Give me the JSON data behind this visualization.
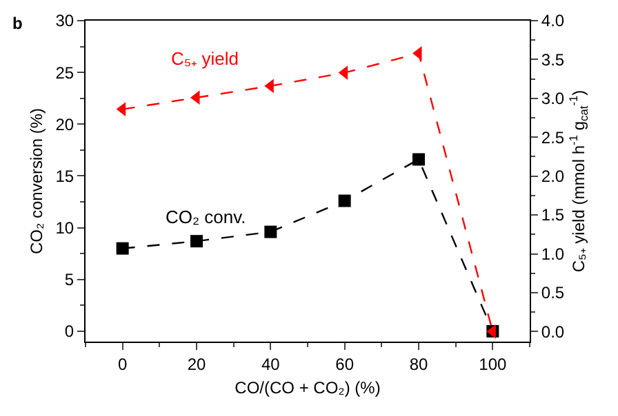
{
  "chart_data": {
    "type": "line",
    "annotations": [
      "b"
    ],
    "xlabel": "CO/(CO + CO₂) (%)",
    "ylabel": "CO₂ conversion (%)",
    "y2label": "C₅₊ yield (mmol h$^{-1}$ g$_{cat}$$^{-1}$)",
    "x": [
      0,
      20,
      40,
      60,
      80,
      100
    ],
    "series": [
      {
        "name": "CO₂ conv.",
        "color": "#000000",
        "marker": "square",
        "values": [
          8.0,
          8.7,
          9.6,
          12.6,
          16.6,
          0
        ]
      },
      {
        "name": "C₅₊ yield",
        "color": "#ff0000",
        "marker": "triangle",
        "axis": "y2",
        "values": [
          2.86,
          3.01,
          3.16,
          3.33,
          3.58,
          0
        ]
      }
    ],
    "xlim": [
      -10,
      110
    ],
    "xticks": [
      0,
      20,
      40,
      60,
      80,
      100
    ],
    "ylim": [
      -1,
      30
    ],
    "yticks": [
      0,
      5,
      10,
      15,
      20,
      25,
      30
    ],
    "y2lim": [
      -0.13,
      4.0
    ],
    "y2ticks": [
      {
        "value": 0,
        "label": "0.0"
      },
      0.5,
      {
        "value": 1,
        "label": "1.0"
      },
      1.5,
      {
        "value": 2,
        "label": "2.0"
      },
      2.5,
      {
        "value": 3,
        "label": "3.0"
      },
      3.5,
      {
        "value": 4,
        "label": "4.0"
      }
    ],
    "grid": false,
    "legend": false,
    "line_style": "dashed"
  }
}
